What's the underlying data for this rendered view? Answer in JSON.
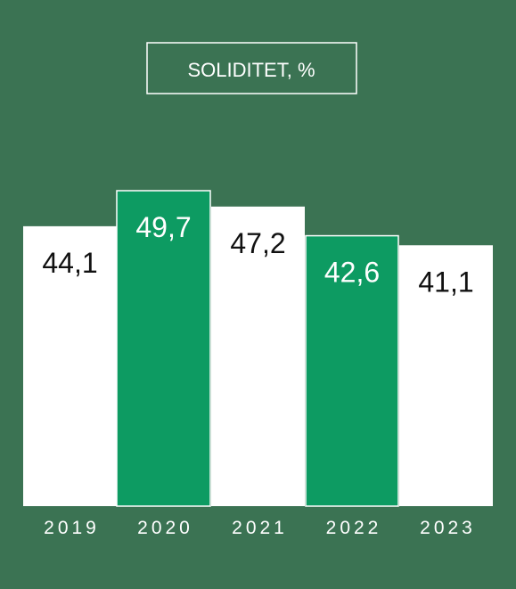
{
  "colors": {
    "background": "#3b7353",
    "bar_white": "#ffffff",
    "bar_green": "#0d9b62",
    "label_dark": "#111111",
    "label_light": "#ffffff"
  },
  "chart_data": {
    "type": "bar",
    "title": "SOLIDITET, %",
    "xlabel": "",
    "ylabel": "",
    "categories": [
      "2019",
      "2020",
      "2021",
      "2022",
      "2023"
    ],
    "values": [
      44.1,
      49.7,
      47.2,
      42.6,
      41.1
    ],
    "value_labels": [
      "44,1",
      "49,7",
      "47,2",
      "42,6",
      "41,1"
    ],
    "bar_colors": [
      "#ffffff",
      "#0d9b62",
      "#ffffff",
      "#0d9b62",
      "#ffffff"
    ],
    "ylim": [
      0,
      49.7
    ],
    "grid": false,
    "legend": "none"
  }
}
